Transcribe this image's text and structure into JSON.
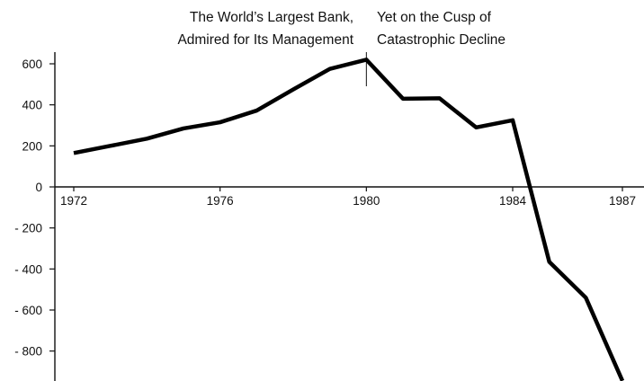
{
  "chart_data": {
    "type": "line",
    "x": [
      1972,
      1973,
      1974,
      1975,
      1976,
      1977,
      1978,
      1979,
      1980,
      1981,
      1982,
      1983,
      1984,
      1985,
      1986,
      1987
    ],
    "series": [
      {
        "values": [
          165,
          200,
          235,
          285,
          315,
          372,
          475,
          575,
          620,
          430,
          432,
          290,
          325,
          -365,
          -540,
          -945
        ]
      }
    ],
    "x_ticks": [
      "1972",
      "1976",
      "1980",
      "1984",
      "1987"
    ],
    "y_ticks": [
      "600",
      "400",
      "200",
      "0",
      "- 200",
      "- 400",
      "- 600",
      "- 800"
    ],
    "y_tick_values": [
      600,
      400,
      200,
      0,
      -200,
      -400,
      -600,
      -800
    ],
    "xlim": [
      1971.5,
      1987.3
    ],
    "ylim": [
      -950,
      680
    ],
    "grid": false,
    "divider_x": 1980,
    "annotations": {
      "left": [
        "The World’s Largest Bank,",
        "Admired for Its Management"
      ],
      "right": [
        "Yet on the Cusp of",
        "Catastrophic Decline"
      ]
    },
    "line_color": "#000000"
  }
}
